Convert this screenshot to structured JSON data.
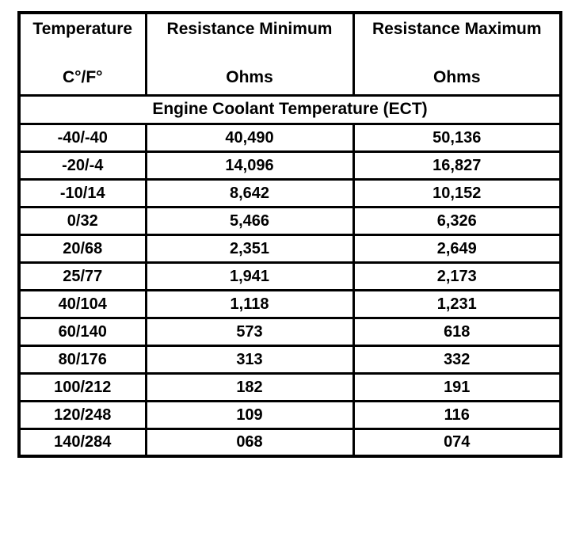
{
  "colors": {
    "border": "#000000",
    "background": "#ffffff",
    "text": "#000000"
  },
  "table": {
    "header": {
      "col1_title": "Temperature",
      "col1_sub": "C°/F°",
      "col2_title": "Resistance Minimum",
      "col2_sub": "Ohms",
      "col3_title": "Resistance Maximum",
      "col3_sub": "Ohms"
    },
    "section_title": "Engine Coolant Temperature (ECT)",
    "rows": [
      {
        "temp": "-40/-40",
        "min": "40,490",
        "max": "50,136"
      },
      {
        "temp": "-20/-4",
        "min": "14,096",
        "max": "16,827"
      },
      {
        "temp": "-10/14",
        "min": "8,642",
        "max": "10,152"
      },
      {
        "temp": "0/32",
        "min": "5,466",
        "max": "6,326"
      },
      {
        "temp": "20/68",
        "min": "2,351",
        "max": "2,649"
      },
      {
        "temp": "25/77",
        "min": "1,941",
        "max": "2,173"
      },
      {
        "temp": "40/104",
        "min": "1,118",
        "max": "1,231"
      },
      {
        "temp": "60/140",
        "min": "573",
        "max": "618"
      },
      {
        "temp": "80/176",
        "min": "313",
        "max": "332"
      },
      {
        "temp": "100/212",
        "min": "182",
        "max": "191"
      },
      {
        "temp": "120/248",
        "min": "109",
        "max": "116"
      },
      {
        "temp": "140/284",
        "min": "068",
        "max": "074"
      }
    ]
  }
}
